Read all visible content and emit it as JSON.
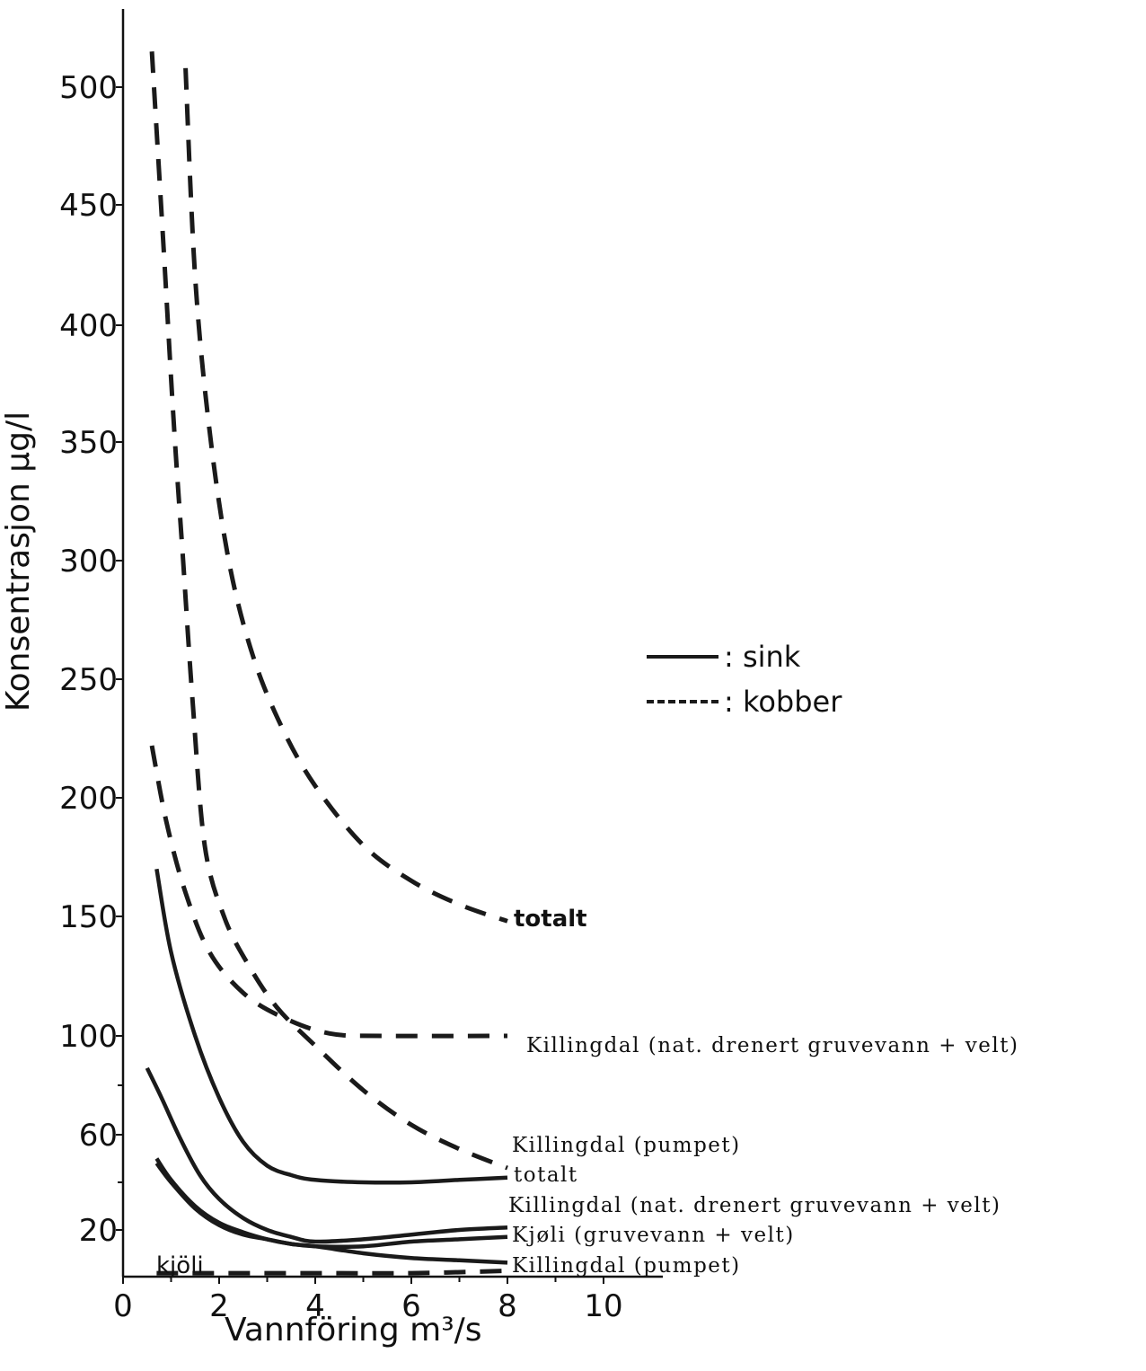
{
  "chart_data": {
    "type": "line",
    "xlabel": "Vannföring m³/s",
    "ylabel": "Konsentrasjon µg/l",
    "xlim": [
      0,
      11
    ],
    "ylim": [
      0,
      520
    ],
    "xticks": [
      0,
      2,
      4,
      6,
      8,
      10
    ],
    "yticks": [
      20,
      60,
      100,
      150,
      200,
      250,
      300,
      350,
      400,
      450,
      500
    ],
    "legend": [
      {
        "style": "solid",
        "label": ": sink"
      },
      {
        "style": "dashed",
        "label": ": kobber"
      }
    ],
    "series": [
      {
        "metal": "kobber",
        "style": "dashed",
        "label": "totalt",
        "points": [
          [
            1.3,
            508
          ],
          [
            1.5,
            420
          ],
          [
            1.8,
            355
          ],
          [
            2.2,
            300
          ],
          [
            2.7,
            260
          ],
          [
            3.3,
            230
          ],
          [
            4.0,
            205
          ],
          [
            5.0,
            180
          ],
          [
            6.0,
            165
          ],
          [
            7.0,
            155
          ],
          [
            8.0,
            148
          ]
        ]
      },
      {
        "metal": "kobber",
        "style": "dashed",
        "label": "Killingdal (nat. drenert gruvevann + velt)",
        "points": [
          [
            0.6,
            222
          ],
          [
            0.9,
            190
          ],
          [
            1.3,
            160
          ],
          [
            1.8,
            135
          ],
          [
            2.5,
            118
          ],
          [
            3.3,
            108
          ],
          [
            4.3,
            101
          ],
          [
            5.5,
            100
          ],
          [
            8.0,
            100
          ]
        ]
      },
      {
        "metal": "kobber",
        "style": "dashed",
        "label": "Killingdal (pumpet)",
        "points": [
          [
            0.6,
            515
          ],
          [
            0.85,
            430
          ],
          [
            1.05,
            360
          ],
          [
            1.25,
            300
          ],
          [
            1.45,
            240
          ],
          [
            1.7,
            180
          ],
          [
            2.1,
            150
          ],
          [
            2.6,
            130
          ],
          [
            3.2,
            112
          ],
          [
            4.0,
            96
          ],
          [
            5.0,
            78
          ],
          [
            6.0,
            64
          ],
          [
            7.0,
            54
          ],
          [
            8.0,
            46
          ]
        ]
      },
      {
        "metal": "kobber",
        "style": "dashed",
        "label": "kjöli",
        "points": [
          [
            0.7,
            1.5
          ],
          [
            2,
            1.5
          ],
          [
            4,
            1.5
          ],
          [
            6,
            1.5
          ],
          [
            8,
            2.5
          ]
        ]
      },
      {
        "metal": "sink",
        "style": "solid",
        "label": "totalt",
        "points": [
          [
            0.7,
            170
          ],
          [
            1.0,
            135
          ],
          [
            1.5,
            100
          ],
          [
            2.0,
            75
          ],
          [
            2.5,
            57
          ],
          [
            3.0,
            47
          ],
          [
            3.5,
            43
          ],
          [
            4.0,
            41
          ],
          [
            5.0,
            40
          ],
          [
            6.0,
            40
          ],
          [
            7.0,
            41
          ],
          [
            8.0,
            42
          ]
        ]
      },
      {
        "metal": "sink",
        "style": "solid",
        "label": "Killingdal (nat. drenert gruvevann + velt)",
        "points": [
          [
            0.5,
            87
          ],
          [
            0.8,
            75
          ],
          [
            1.2,
            58
          ],
          [
            1.6,
            43
          ],
          [
            2.0,
            33
          ],
          [
            2.5,
            25
          ],
          [
            3.0,
            20
          ],
          [
            3.5,
            17
          ],
          [
            4.0,
            15
          ],
          [
            5.0,
            16
          ],
          [
            6.0,
            18
          ],
          [
            7.0,
            20
          ],
          [
            8.0,
            21
          ]
        ]
      },
      {
        "metal": "sink",
        "style": "solid",
        "label": "Kjøli (gruvevann + velt)",
        "points": [
          [
            0.7,
            50
          ],
          [
            1.0,
            41
          ],
          [
            1.5,
            30
          ],
          [
            2.0,
            23
          ],
          [
            2.5,
            19
          ],
          [
            3.0,
            16
          ],
          [
            3.5,
            14
          ],
          [
            4.0,
            13
          ],
          [
            5.0,
            13
          ],
          [
            6.0,
            15
          ],
          [
            7.0,
            16
          ],
          [
            8.0,
            17
          ]
        ]
      },
      {
        "metal": "sink",
        "style": "solid",
        "label": "Killingdal (pumpet)",
        "points": [
          [
            0.7,
            48
          ],
          [
            1.0,
            40
          ],
          [
            1.5,
            29
          ],
          [
            2.0,
            22
          ],
          [
            2.5,
            18
          ],
          [
            3.0,
            16
          ],
          [
            3.5,
            14
          ],
          [
            4.0,
            13
          ],
          [
            5.0,
            10
          ],
          [
            6.0,
            8
          ],
          [
            7.0,
            7
          ],
          [
            8.0,
            6
          ]
        ]
      }
    ],
    "annotations": [
      {
        "text": "totalt",
        "bold": true
      },
      {
        "text": "Killingdal (nat. drenert gruvevann + velt)",
        "bold": false
      },
      {
        "text": "Killingdal (pumpet)",
        "bold": false
      },
      {
        "text": "totalt",
        "bold": false
      },
      {
        "text": "Killingdal (nat. drenert gruvevann + velt)",
        "bold": false
      },
      {
        "text": "Kjøli (gruvevann + velt)",
        "bold": false
      },
      {
        "text": "Killingdal (pumpet)",
        "bold": false
      },
      {
        "text": "kjöli",
        "bold": false
      }
    ]
  }
}
